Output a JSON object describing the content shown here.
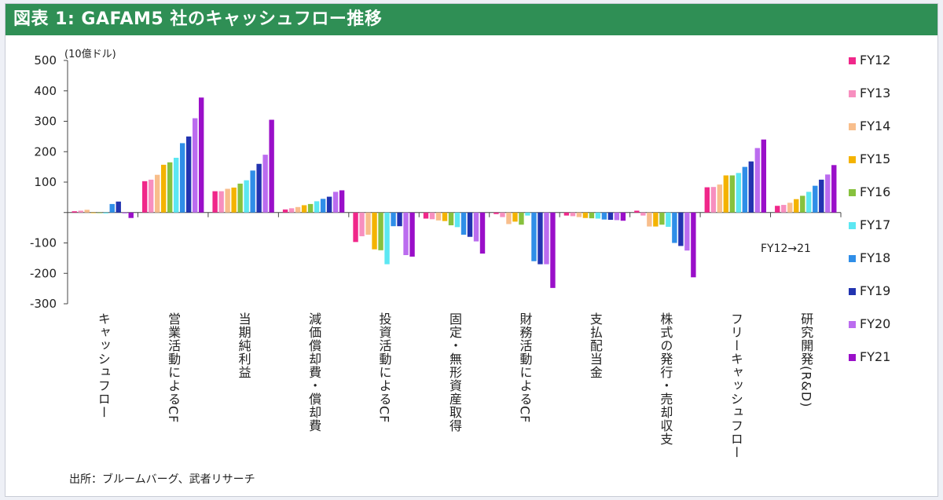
{
  "title": "図表 1: GAFAM5 社のキャッシュフロー推移",
  "unit": "(10億ドル)",
  "source": "出所：ブルームバーグ、武者リサーチ",
  "range_note": "FY12→21",
  "colors": [
    "#f0278a",
    "#f78fbf",
    "#f8be8c",
    "#f4b300",
    "#87c13e",
    "#5ce7f2",
    "#2f8ee8",
    "#2234b0",
    "#bb6cef",
    "#9a0fc9"
  ],
  "chart_data": {
    "type": "bar",
    "categories": [
      "キャッシュフロー",
      "営業活動によるCF",
      "当期純利益",
      "減価償却費・償却費",
      "投資活動によるCF",
      "固定・無形資産取得",
      "財務活動によるCF",
      "支払配当金",
      "株式の発行・売却収支",
      "フリーキャッシュフロー",
      "研究開発(R&D)"
    ],
    "series": [
      {
        "name": "FY12",
        "values": [
          4,
          103,
          70,
          10,
          -97,
          -20,
          -5,
          -10,
          6,
          83,
          22
        ]
      },
      {
        "name": "FY13",
        "values": [
          6,
          108,
          70,
          14,
          -78,
          -22,
          -15,
          -12,
          -10,
          84,
          25
        ]
      },
      {
        "name": "FY14",
        "values": [
          9,
          124,
          78,
          18,
          -73,
          -26,
          -38,
          -15,
          -46,
          92,
          32
        ]
      },
      {
        "name": "FY15",
        "values": [
          -2,
          157,
          82,
          24,
          -121,
          -28,
          -30,
          -18,
          -46,
          122,
          44
        ]
      },
      {
        "name": "FY16",
        "values": [
          -2,
          165,
          95,
          28,
          -124,
          -42,
          -40,
          -19,
          -40,
          122,
          55
        ]
      },
      {
        "name": "FY17",
        "values": [
          -3,
          180,
          106,
          37,
          -170,
          -48,
          -10,
          -20,
          -47,
          130,
          68
        ]
      },
      {
        "name": "FY18",
        "values": [
          28,
          228,
          138,
          45,
          -45,
          -73,
          -160,
          -23,
          -100,
          150,
          88
        ]
      },
      {
        "name": "FY19",
        "values": [
          36,
          250,
          160,
          52,
          -45,
          -80,
          -170,
          -24,
          -110,
          168,
          108
        ]
      },
      {
        "name": "FY20",
        "values": [
          -3,
          310,
          190,
          68,
          -140,
          -95,
          -170,
          -25,
          -125,
          212,
          125
        ]
      },
      {
        "name": "FY21",
        "values": [
          -18,
          378,
          305,
          73,
          -145,
          -135,
          -248,
          -27,
          -213,
          240,
          156
        ]
      }
    ],
    "ylim": [
      -300,
      500
    ],
    "yticks": [
      -300,
      -200,
      -100,
      0,
      100,
      200,
      300,
      400,
      500
    ],
    "ytick_labels": [
      "-300",
      "-200",
      "-100",
      "",
      "100",
      "200",
      "300",
      "400",
      "500"
    ],
    "legend_position": "right"
  }
}
